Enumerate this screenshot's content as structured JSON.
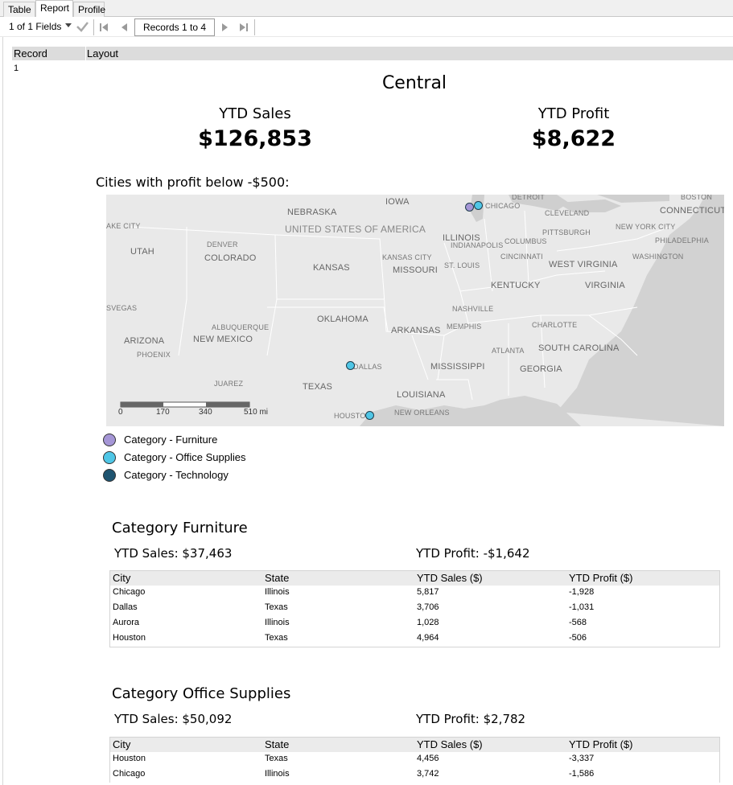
{
  "tabs": [
    {
      "label": "Table",
      "active": false
    },
    {
      "label": "Report",
      "active": true
    },
    {
      "label": "Profile",
      "active": false
    }
  ],
  "toolbar": {
    "fields_label": "1 of 1 Fields",
    "records_label": "Records 1 to 4"
  },
  "record_header": {
    "record": "Record",
    "layout": "Layout",
    "record_number": "1"
  },
  "report": {
    "title": "Central",
    "ytd_sales_label": "YTD Sales",
    "ytd_sales_value": "$126,853",
    "ytd_profit_label": "YTD Profit",
    "ytd_profit_value": "$8,622",
    "cities_label": "Cities with profit below -$500:"
  },
  "map": {
    "country_label": "UNITED STATES OF AMERICA",
    "states": [
      "NEBRASKA",
      "IOWA",
      "UTAH",
      "COLORADO",
      "KANSAS",
      "MISSOURI",
      "ILLINOIS",
      "KENTUCKY",
      "WEST VIRGINIA",
      "VIRGINIA",
      "OKLAHOMA",
      "ARKANSAS",
      "ARIZONA",
      "NEW MEXICO",
      "TEXAS",
      "MISSISSIPPI",
      "LOUISIANA",
      "GEORGIA",
      "SOUTH CAROLINA",
      "CONNECTICUT"
    ],
    "cities": [
      "DETROIT",
      "BOSTON",
      "CHICAGO",
      "CLEVELAND",
      "NEW YORK CITY",
      "PITTSBURGH",
      "PHILADELPHIA",
      "COLUMBUS",
      "INDIANAPOLIS",
      "KANSAS CITY",
      "CINCINNATI",
      "WASHINGTON",
      "ST. LOUIS",
      "DENVER",
      "NASHVILLE",
      "MEMPHIS",
      "CHARLOTTE",
      "ATLANTA",
      "ALBUQUERQUE",
      "PHOENIX",
      "DALLAS",
      "JUAREZ",
      "HOUSTON",
      "NEW ORLEANS",
      "AKE CITY",
      "SVEGAS"
    ],
    "scale_ticks": [
      "0",
      "170",
      "340",
      "510 mi"
    ],
    "pins": [
      {
        "city": "Chicago",
        "category": "Furniture"
      },
      {
        "city": "Chicago",
        "category": "Office Supplies"
      },
      {
        "city": "Dallas",
        "category": "Office Supplies"
      },
      {
        "city": "Houston",
        "category": "Office Supplies"
      }
    ]
  },
  "legend": [
    {
      "label": "Category - Furniture",
      "color": "#a596d6"
    },
    {
      "label": "Category - Office Supplies",
      "color": "#4fc6e6"
    },
    {
      "label": "Category - Technology",
      "color": "#1e5470"
    }
  ],
  "categories": [
    {
      "title": "Category Furniture",
      "ytd_sales": "YTD Sales: $37,463",
      "ytd_profit": "YTD Profit: -$1,642",
      "headers": [
        "City",
        "State",
        "YTD Sales ($)",
        "YTD Profit ($)"
      ],
      "rows": [
        [
          "Chicago",
          "Illinois",
          "5,817",
          "-1,928"
        ],
        [
          "Dallas",
          "Texas",
          "3,706",
          "-1,031"
        ],
        [
          "Aurora",
          "Illinois",
          "1,028",
          "-568"
        ],
        [
          "Houston",
          "Texas",
          "4,964",
          "-506"
        ]
      ]
    },
    {
      "title": "Category Office Supplies",
      "ytd_sales": "YTD Sales: $50,092",
      "ytd_profit": "YTD Profit: $2,782",
      "headers": [
        "City",
        "State",
        "YTD Sales ($)",
        "YTD Profit ($)"
      ],
      "rows": [
        [
          "Houston",
          "Texas",
          "4,456",
          "-3,337"
        ],
        [
          "Chicago",
          "Illinois",
          "3,742",
          "-1,586"
        ]
      ]
    }
  ]
}
